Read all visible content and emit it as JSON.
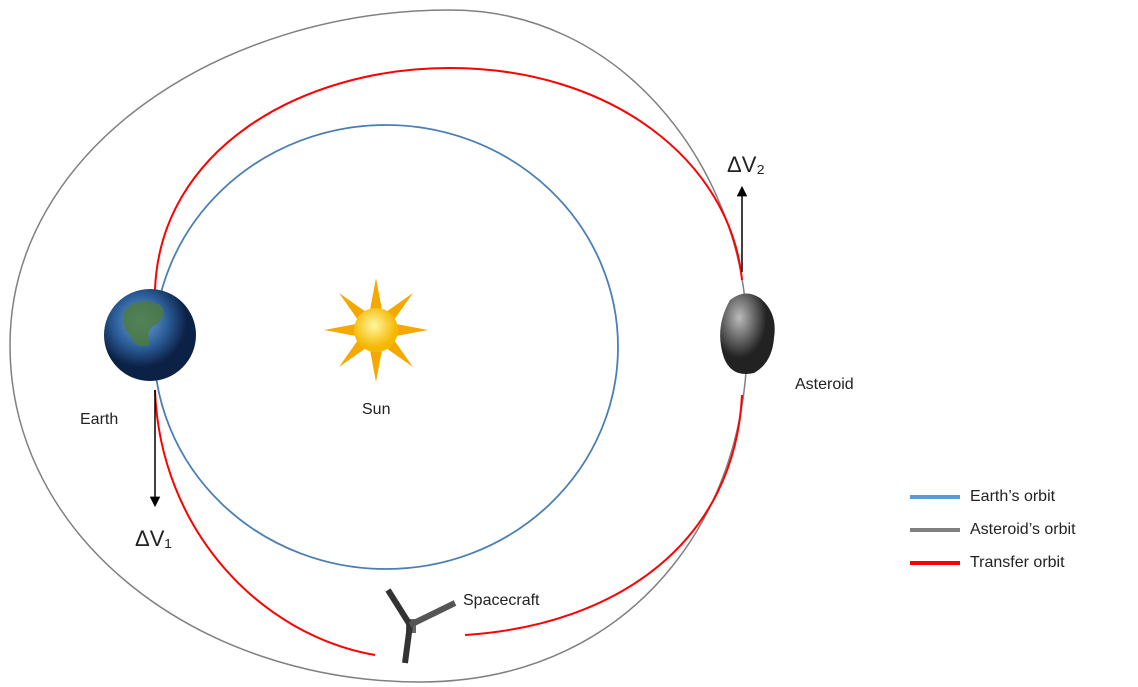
{
  "labels": {
    "earth": "Earth",
    "sun": "Sun",
    "asteroid": "Asteroid",
    "spacecraft": "Spacecraft",
    "dv1": "ΔV₁",
    "dv2": "ΔV₂"
  },
  "legend": [
    {
      "label": "Earth’s orbit",
      "color": "#5b9bd5"
    },
    {
      "label": "Asteroid’s orbit",
      "color": "#808080"
    },
    {
      "label": "Transfer orbit",
      "color": "#ff0000"
    }
  ]
}
